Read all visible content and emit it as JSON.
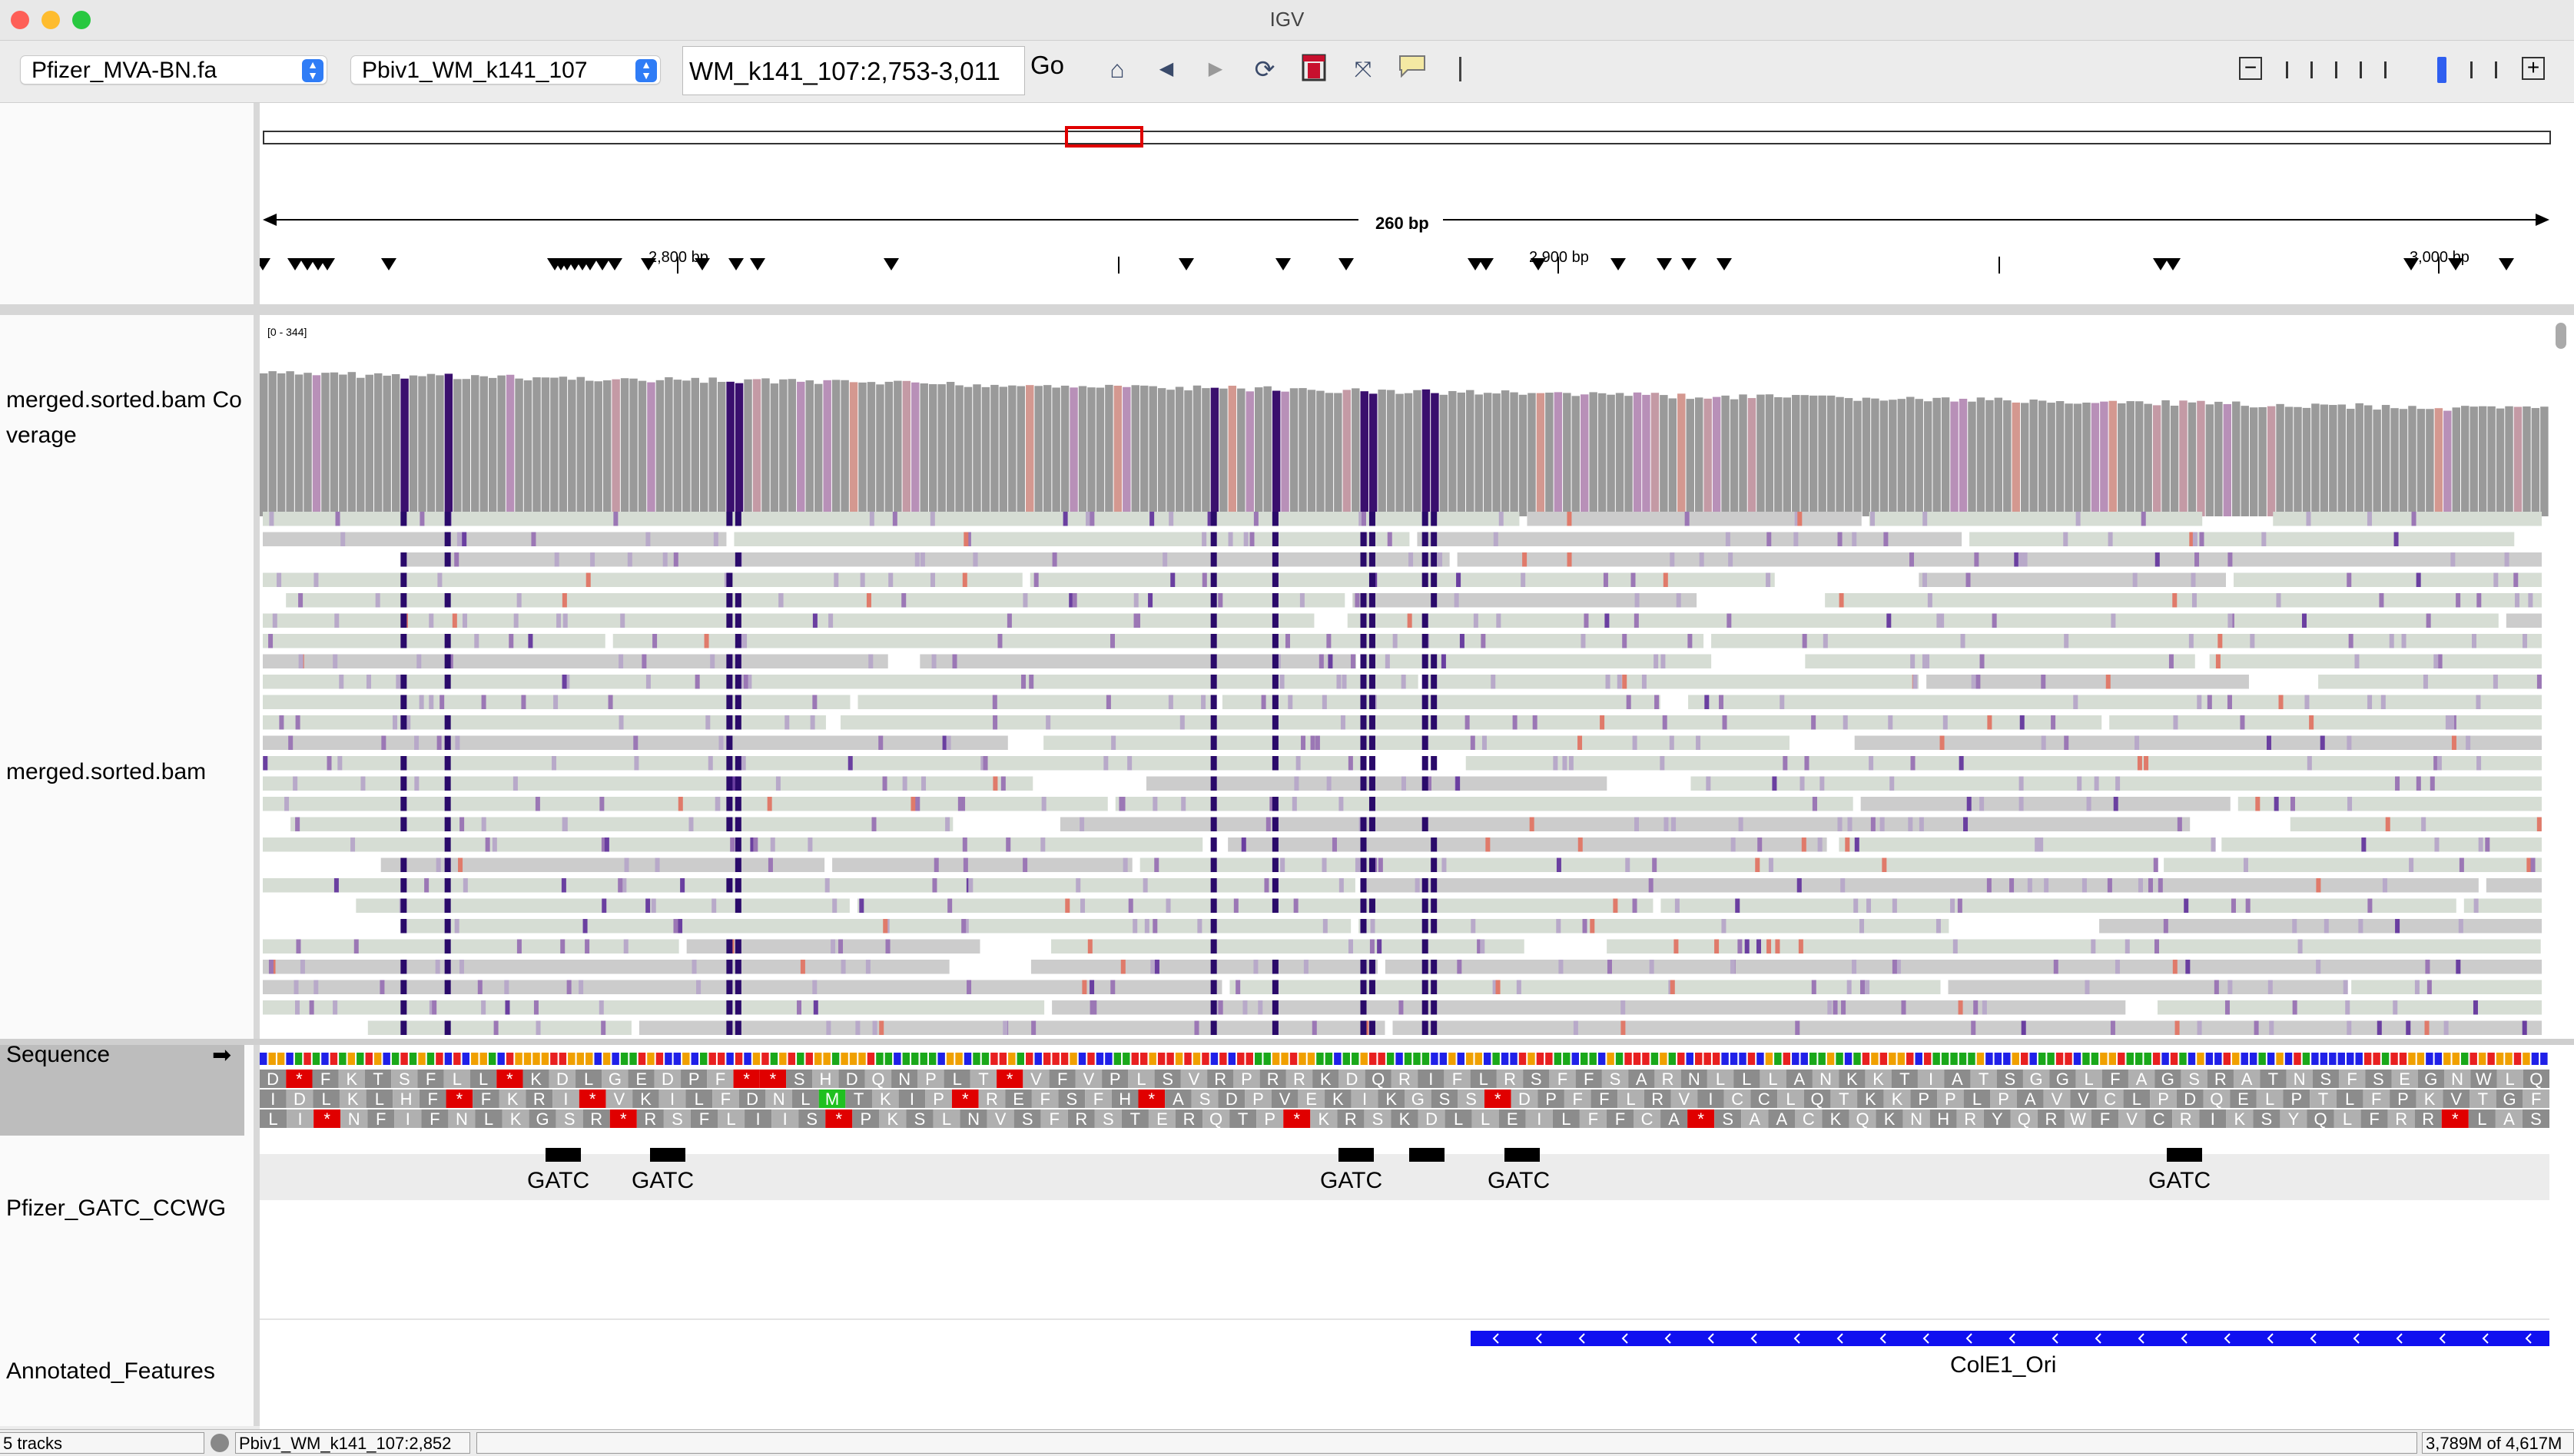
{
  "window": {
    "title": "IGV"
  },
  "toolbar": {
    "genome": "Pfizer_MVA-BN.fa",
    "chromosome": "Pbiv1_WM_k141_107",
    "locus": "WM_k141_107:2,753-3,011",
    "go_label": "Go",
    "icons": [
      "home-icon",
      "back-icon",
      "forward-icon",
      "refresh-icon",
      "roi-icon",
      "resize-icon",
      "popup-text-icon"
    ],
    "zoom_out": "−",
    "zoom_in": "+"
  },
  "ruler": {
    "span_label": "260 bp",
    "ticks": [
      "2,800 bp",
      "2,900 bp",
      "3,000 bp"
    ]
  },
  "tracks": {
    "coverage_label": "merged.sorted.bam Coverage",
    "coverage_range": "[0 - 344]",
    "alignment_label": "merged.sorted.bam",
    "sequence_label": "Sequence",
    "sequence_arrow": "➡",
    "gatc_label": "Pfizer_GATC_CCWG",
    "annot_label": "Annotated_Features"
  },
  "translation": {
    "frame1": "D*FKTSFLL*KDLGEDPF**SHDQNPLT*VFVPLSVRPRRKDQRIFLRSFFSARNLLLANKKTIATSGGLFAGSRATNSFSEGNWLQ",
    "frame2": "IDLKLHF*FKRI*VKILFDNLMTKIP*REFSFH*ASDPVEKIKGSS*DPFFLRVICCLQTKKPPLPAVVCLPDQELPTLFPKVTGF",
    "frame3": "LI*NFIFNLKGSR*RSFLIIS*PKSLNVSFRSTERQTP*KRSKDLLEILFFCA*SAACKQKNHRYQRWFVCRIKSYQLFRR*LAS"
  },
  "features": {
    "gatc": [
      "GATC",
      "GATC",
      "GATC",
      "GATC",
      "GATC"
    ],
    "cole1": "ColE1_Ori"
  },
  "status": {
    "tracks": "5 tracks",
    "position": "Pbiv1_WM_k141_107:2,852",
    "memory": "3,789M of 4,617M"
  },
  "colors": {
    "match_read": "#d6ddd4",
    "gray_read": "#c8c8c8",
    "insertion": "#2a0a6a",
    "mismatch_red": "#e8342c",
    "blue_feature": "#1010f0",
    "region_box": "#e00000"
  }
}
